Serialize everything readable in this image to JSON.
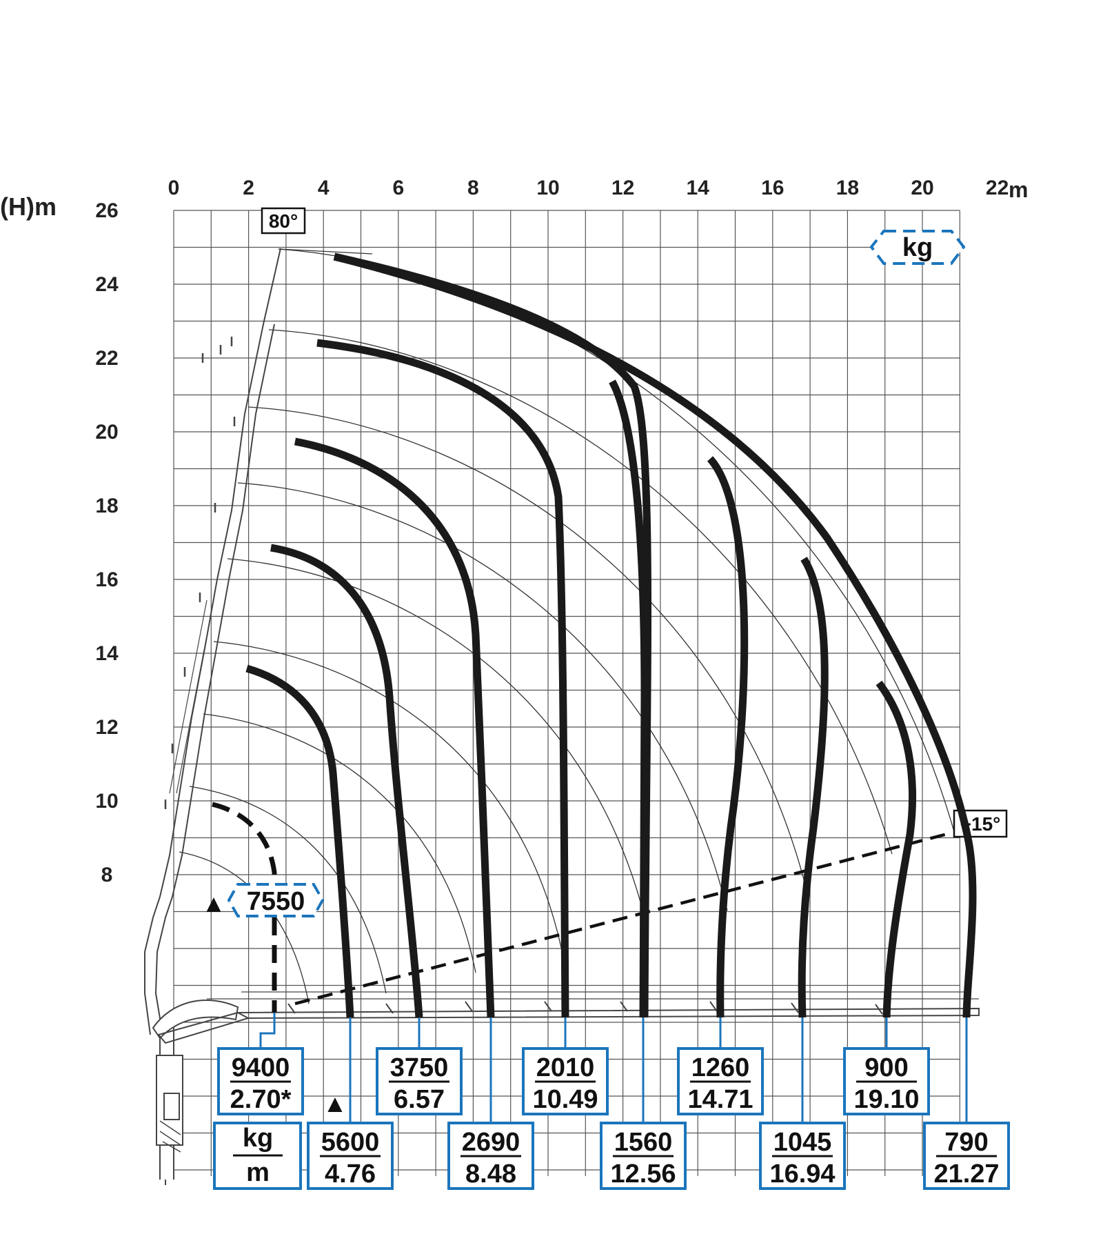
{
  "axes": {
    "y_label": "(H)m",
    "x_unit": "m",
    "x_ticks": [
      "0",
      "2",
      "4",
      "6",
      "8",
      "10",
      "12",
      "14",
      "16",
      "18",
      "20",
      "22"
    ],
    "y_ticks": [
      "26",
      "24",
      "22",
      "20",
      "18",
      "16",
      "14",
      "12",
      "10",
      "8"
    ]
  },
  "angles": {
    "top": "80°",
    "bottom": "+15°"
  },
  "legend": {
    "kg_tag": "kg",
    "unit_kg": "kg",
    "unit_m": "m"
  },
  "special_load": {
    "value": "7550",
    "marker": "▲"
  },
  "load_boxes": [
    {
      "kg": "9400",
      "m": "2.70*"
    },
    {
      "kg": "5600",
      "m": "4.76",
      "marker": "▲"
    },
    {
      "kg": "3750",
      "m": "6.57"
    },
    {
      "kg": "2690",
      "m": "8.48"
    },
    {
      "kg": "2010",
      "m": "10.49"
    },
    {
      "kg": "1560",
      "m": "12.56"
    },
    {
      "kg": "1260",
      "m": "14.71"
    },
    {
      "kg": "1045",
      "m": "16.94"
    },
    {
      "kg": "900",
      "m": "19.10"
    },
    {
      "kg": "790",
      "m": "21.27"
    }
  ],
  "colors": {
    "box_border": "#1b75bc",
    "grid": "#555555",
    "curve": "#1a1a1a"
  }
}
